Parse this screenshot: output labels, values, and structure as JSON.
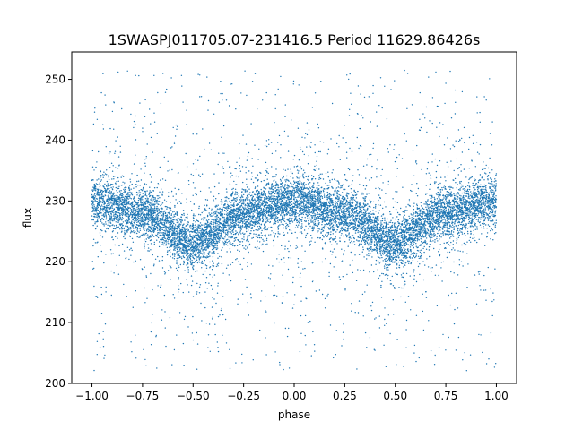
{
  "chart_data": {
    "type": "scatter",
    "title": "1SWASPJ011705.07-231416.5 Period 11629.86426s",
    "xlabel": "phase",
    "ylabel": "flux",
    "xlim": [
      -1.1,
      1.1
    ],
    "ylim": [
      200,
      254.5
    ],
    "x_ticks": [
      -1.0,
      -0.75,
      -0.5,
      -0.25,
      0.0,
      0.25,
      0.5,
      0.75,
      1.0
    ],
    "x_tick_labels": [
      "−1.00",
      "−0.75",
      "−0.50",
      "−0.25",
      "0.00",
      "0.25",
      "0.50",
      "0.75",
      "1.00"
    ],
    "y_ticks": [
      200,
      210,
      220,
      230,
      240,
      250
    ],
    "y_tick_labels": [
      "200",
      "210",
      "220",
      "230",
      "240",
      "250"
    ],
    "grid": false,
    "legend": "none",
    "marker_color": "#1f77b4",
    "series": [
      {
        "x_range": [
          -1.0,
          1.0
        ],
        "curve_x": [
          -1.0,
          -0.75,
          -0.5,
          -0.25,
          0.0,
          0.25,
          0.5,
          0.75,
          1.0
        ],
        "curve_y": [
          230,
          228,
          223,
          228,
          230,
          228,
          223,
          228,
          230
        ],
        "band_halfwidth": 4,
        "outlier_range": [
          202,
          251.5
        ]
      }
    ]
  }
}
